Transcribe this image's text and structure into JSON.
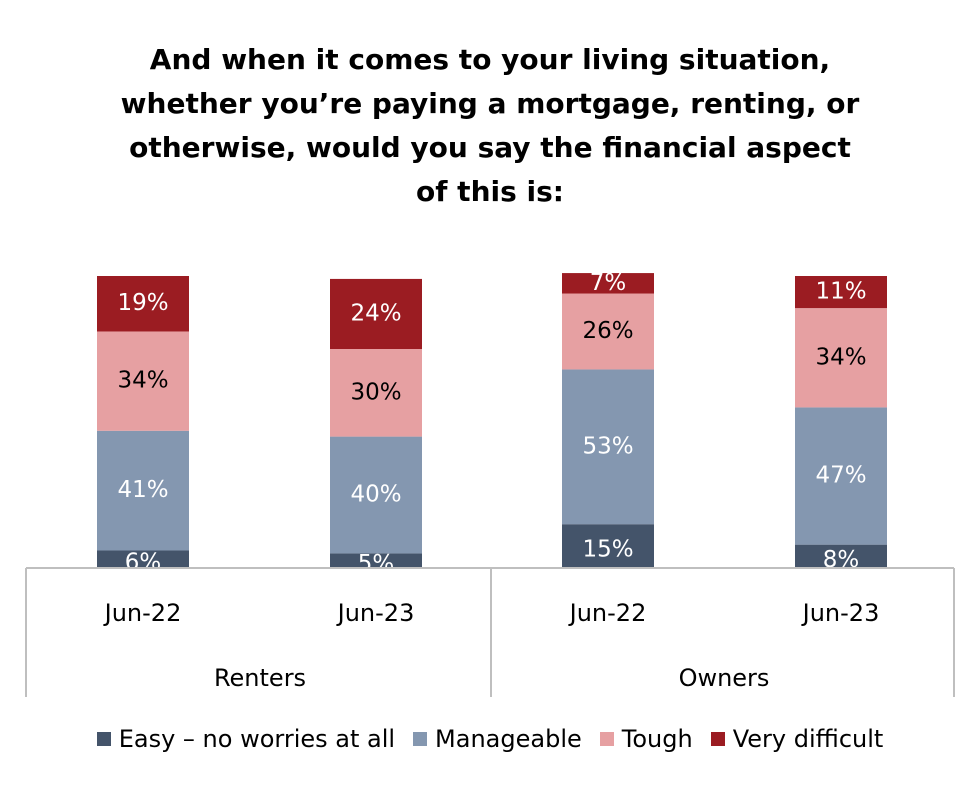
{
  "chart_data": {
    "type": "bar",
    "stacked": true,
    "title_lines": [
      "And when it comes to your living situation,",
      "whether you’re paying a mortgage, renting, or",
      "otherwise, would you say the financial aspect",
      "of this is:"
    ],
    "groups": [
      {
        "label": "Renters",
        "categories": [
          "Jun-22",
          "Jun-23"
        ]
      },
      {
        "label": "Owners",
        "categories": [
          "Jun-22",
          "Jun-23"
        ]
      }
    ],
    "categories": [
      "Jun-22",
      "Jun-23",
      "Jun-22",
      "Jun-23"
    ],
    "series": [
      {
        "name": "Easy – no worries at all",
        "color": "#44546a",
        "values": [
          6,
          5,
          15,
          8
        ],
        "labels": [
          "6%",
          "5%",
          "15%",
          "8%"
        ]
      },
      {
        "name": "Manageable",
        "color": "#8497b0",
        "values": [
          41,
          40,
          53,
          47
        ],
        "labels": [
          "41%",
          "40%",
          "53%",
          "47%"
        ]
      },
      {
        "name": "Tough",
        "color": "#e6a0a2",
        "values": [
          34,
          30,
          26,
          34
        ],
        "labels": [
          "34%",
          "30%",
          "26%",
          "34%"
        ]
      },
      {
        "name": "Very difficult",
        "color": "#9b1c22",
        "values": [
          19,
          24,
          7,
          11
        ],
        "labels": [
          "19%",
          "24%",
          "7%",
          "11%"
        ]
      }
    ],
    "label_colors": {
      "Easy – no worries at all": "#ffffff",
      "Manageable": "#ffffff",
      "Tough": "#000000",
      "Very difficult": "#ffffff"
    },
    "axis_line_color": "#bfbfbf",
    "legend_position": "bottom",
    "grid": false
  }
}
